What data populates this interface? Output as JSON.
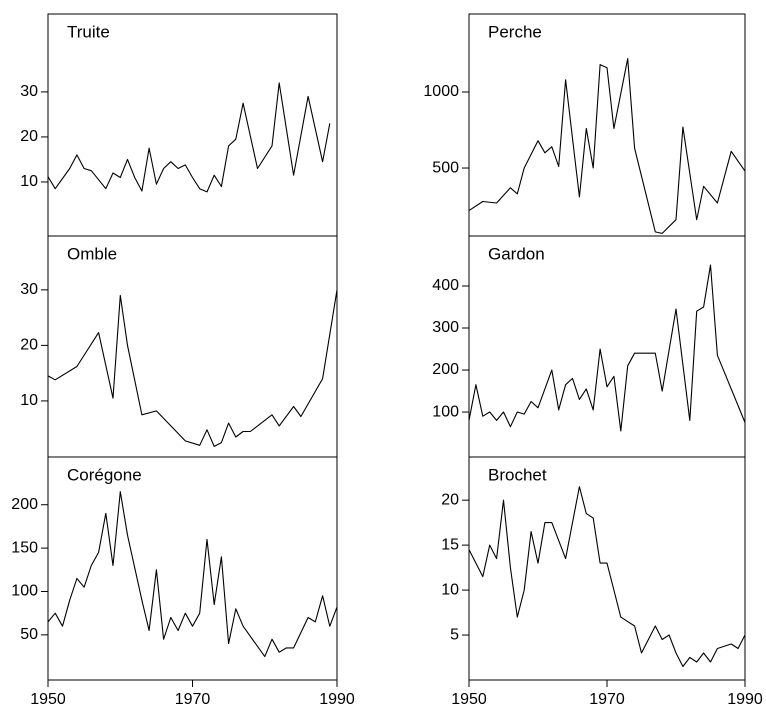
{
  "chart_data": [
    {
      "type": "line",
      "title": "Truite",
      "color": "#000000",
      "x": [
        1950,
        1951,
        1953,
        1954,
        1955,
        1956,
        1957,
        1958,
        1959,
        1960,
        1961,
        1962,
        1963,
        1964,
        1965,
        1966,
        1967,
        1968,
        1969,
        1970,
        1971,
        1972,
        1973,
        1974,
        1975,
        1976,
        1977,
        1979,
        1981,
        1982,
        1984,
        1986,
        1988,
        1989
      ],
      "values": [
        11.2,
        8.5,
        13,
        16,
        13,
        12.5,
        10.5,
        8.5,
        12,
        11,
        15,
        11,
        8,
        17.5,
        9.5,
        13,
        14.5,
        13,
        13.8,
        11,
        8.5,
        7.8,
        11.5,
        9,
        18,
        19.5,
        27.5,
        13,
        18,
        32,
        11.5,
        29,
        14.5,
        23
      ],
      "xlim": [
        1950,
        1990
      ],
      "ylim": [
        -2,
        47.3
      ],
      "yticks": [
        10,
        20,
        30
      ]
    },
    {
      "type": "line",
      "title": "Perche",
      "color": "#000000",
      "x": [
        1950,
        1952,
        1954,
        1956,
        1957,
        1958,
        1960,
        1961,
        1962,
        1963,
        1964,
        1966,
        1967,
        1968,
        1969,
        1970,
        1971,
        1973,
        1974,
        1977,
        1978,
        1980,
        1981,
        1983,
        1984,
        1986,
        1988,
        1990
      ],
      "values": [
        220,
        280,
        270,
        370,
        330,
        500,
        680,
        600,
        640,
        510,
        1080,
        310,
        760,
        500,
        1180,
        1160,
        760,
        1220,
        630,
        80,
        70,
        160,
        770,
        160,
        380,
        270,
        610,
        480
      ],
      "xlim": [
        1950,
        1990
      ],
      "ylim": [
        53,
        1513
      ],
      "yticks": [
        500,
        1000
      ]
    },
    {
      "type": "line",
      "title": "Omble",
      "color": "#000000",
      "x": [
        1950,
        1951,
        1954,
        1957,
        1959,
        1960,
        1961,
        1963,
        1965,
        1969,
        1971,
        1972,
        1973,
        1974,
        1975,
        1976,
        1977,
        1978,
        1981,
        1982,
        1984,
        1985,
        1988,
        1990
      ],
      "values": [
        14.5,
        13.8,
        16.2,
        22.3,
        10.5,
        29,
        20,
        7.5,
        8.2,
        2.8,
        2,
        4.8,
        1.8,
        2.5,
        6,
        3.5,
        4.5,
        4.5,
        7.5,
        5.5,
        9,
        7.2,
        14,
        30
      ],
      "xlim": [
        1950,
        1990
      ],
      "ylim": [
        -0.1,
        39.7
      ],
      "yticks": [
        10,
        20,
        30
      ]
    },
    {
      "type": "line",
      "title": "Gardon",
      "color": "#000000",
      "x": [
        1950,
        1951,
        1952,
        1953,
        1954,
        1955,
        1956,
        1957,
        1958,
        1959,
        1960,
        1962,
        1963,
        1964,
        1965,
        1966,
        1967,
        1968,
        1969,
        1970,
        1971,
        1972,
        1973,
        1974,
        1977,
        1978,
        1980,
        1982,
        1983,
        1984,
        1985,
        1986,
        1990
      ],
      "values": [
        80,
        165,
        90,
        100,
        80,
        100,
        65,
        100,
        95,
        125,
        110,
        200,
        105,
        165,
        180,
        130,
        155,
        105,
        250,
        160,
        185,
        55,
        210,
        240,
        240,
        150,
        345,
        80,
        340,
        350,
        450,
        235,
        75
      ],
      "xlim": [
        1950,
        1990
      ],
      "ylim": [
        -7,
        519
      ],
      "yticks": [
        100,
        200,
        300,
        400
      ]
    },
    {
      "type": "line",
      "title": "Corégone",
      "color": "#000000",
      "x": [
        1950,
        1951,
        1952,
        1953,
        1954,
        1955,
        1956,
        1957,
        1958,
        1959,
        1960,
        1961,
        1963,
        1964,
        1965,
        1966,
        1967,
        1968,
        1969,
        1970,
        1971,
        1972,
        1973,
        1974,
        1975,
        1976,
        1977,
        1980,
        1981,
        1982,
        1983,
        1984,
        1986,
        1987,
        1988,
        1989,
        1990
      ],
      "values": [
        65,
        75,
        60,
        90,
        115,
        105,
        130,
        145,
        190,
        130,
        215,
        165,
        90,
        55,
        125,
        45,
        70,
        55,
        75,
        60,
        75,
        160,
        85,
        140,
        40,
        80,
        60,
        25,
        45,
        30,
        35,
        35,
        70,
        65,
        95,
        60,
        82
      ],
      "xlim": [
        1950,
        1990
      ],
      "ylim": [
        -2,
        255
      ],
      "yticks": [
        50,
        100,
        150,
        200
      ],
      "xticks": [
        1950,
        1970,
        1990
      ]
    },
    {
      "type": "line",
      "title": "Brochet",
      "color": "#000000",
      "x": [
        1950,
        1952,
        1953,
        1954,
        1955,
        1956,
        1957,
        1958,
        1959,
        1960,
        1961,
        1962,
        1964,
        1966,
        1967,
        1968,
        1969,
        1970,
        1972,
        1973,
        1974,
        1975,
        1977,
        1978,
        1979,
        1980,
        1981,
        1982,
        1983,
        1984,
        1985,
        1986,
        1988,
        1989,
        1990
      ],
      "values": [
        14.5,
        11.5,
        15,
        13.5,
        20,
        12.5,
        7,
        10,
        16.5,
        13,
        17.5,
        17.5,
        13.5,
        21.5,
        18.5,
        18,
        13,
        13,
        7,
        6.5,
        6,
        3,
        6,
        4.5,
        5,
        3,
        1.5,
        2.5,
        2,
        3,
        2,
        3.5,
        4,
        3.5,
        5
      ],
      "xlim": [
        1950,
        1990
      ],
      "ylim": [
        0,
        24.8
      ],
      "yticks": [
        5,
        10,
        15,
        20
      ],
      "xticks": [
        1950,
        1970,
        1990
      ]
    }
  ]
}
